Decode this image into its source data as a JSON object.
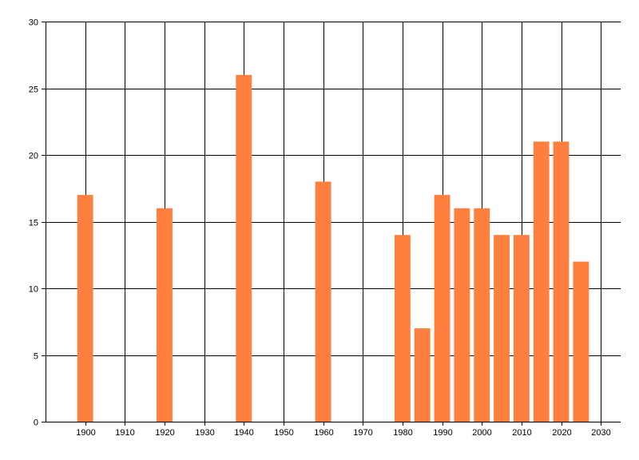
{
  "chart_data": {
    "type": "bar",
    "x": [
      1900,
      1920,
      1940,
      1960,
      1980,
      1985,
      1990,
      1995,
      2000,
      2005,
      2010,
      2015,
      2020,
      2025
    ],
    "values": [
      17,
      16,
      26,
      18,
      14,
      7,
      17,
      16,
      16,
      14,
      14,
      21,
      21,
      12
    ],
    "xlim": [
      1890,
      2035
    ],
    "ylim": [
      0,
      30
    ],
    "x_ticks": [
      1900,
      1910,
      1920,
      1930,
      1940,
      1950,
      1960,
      1970,
      1980,
      1990,
      2000,
      2010,
      2020,
      2030
    ],
    "y_ticks": [
      0,
      5,
      10,
      15,
      20,
      25,
      30
    ],
    "grid": true,
    "bar_color": "#ff7f3f",
    "title": "",
    "xlabel": "",
    "ylabel": ""
  }
}
